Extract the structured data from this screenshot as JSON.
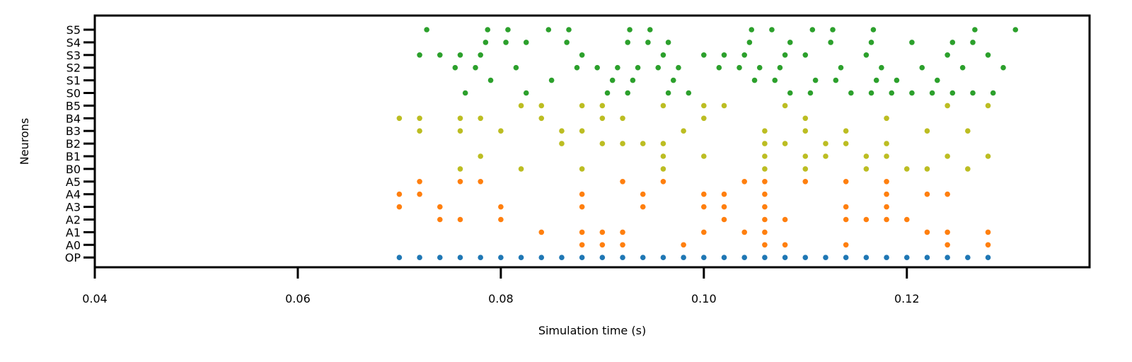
{
  "chart_data": {
    "type": "scatter",
    "title": "",
    "xlabel": "Simulation time (s)",
    "ylabel": "Neurons",
    "xlim": [
      0.04,
      0.138
    ],
    "xticks": [
      0.04,
      0.06,
      0.08,
      0.1,
      0.12
    ],
    "xtick_labels": [
      "0.04",
      "0.06",
      "0.08",
      "0.10",
      "0.12"
    ],
    "grid": false,
    "legend": "none",
    "neurons": [
      "OP",
      "A0",
      "A1",
      "A2",
      "A3",
      "A4",
      "A5",
      "B0",
      "B1",
      "B2",
      "B3",
      "B4",
      "B5",
      "S0",
      "S1",
      "S2",
      "S3",
      "S4",
      "S5"
    ],
    "colors": {
      "OP": "#1f77b4",
      "A": "#ff7f0e",
      "B": "#bcbd22",
      "S": "#2ca02c"
    },
    "spikes": {
      "OP": [
        0.07,
        0.072,
        0.074,
        0.076,
        0.078,
        0.08,
        0.082,
        0.084,
        0.086,
        0.088,
        0.09,
        0.092,
        0.094,
        0.096,
        0.098,
        0.1,
        0.102,
        0.104,
        0.106,
        0.108,
        0.11,
        0.112,
        0.114,
        0.116,
        0.118,
        0.12,
        0.122,
        0.124,
        0.126,
        0.128
      ],
      "A0": [
        0.088,
        0.09,
        0.092,
        0.098,
        0.106,
        0.108,
        0.114,
        0.124,
        0.128
      ],
      "A1": [
        0.084,
        0.088,
        0.09,
        0.092,
        0.1,
        0.104,
        0.106,
        0.122,
        0.124,
        0.128
      ],
      "A2": [
        0.074,
        0.076,
        0.08,
        0.102,
        0.106,
        0.108,
        0.114,
        0.116,
        0.118,
        0.12
      ],
      "A3": [
        0.07,
        0.074,
        0.08,
        0.088,
        0.094,
        0.1,
        0.102,
        0.106,
        0.114,
        0.118
      ],
      "A4": [
        0.07,
        0.072,
        0.088,
        0.094,
        0.1,
        0.102,
        0.106,
        0.118,
        0.122,
        0.124
      ],
      "A5": [
        0.072,
        0.076,
        0.078,
        0.092,
        0.096,
        0.104,
        0.106,
        0.11,
        0.114,
        0.118
      ],
      "B0": [
        0.076,
        0.082,
        0.088,
        0.096,
        0.106,
        0.11,
        0.116,
        0.12,
        0.122,
        0.126
      ],
      "B1": [
        0.078,
        0.096,
        0.1,
        0.106,
        0.11,
        0.112,
        0.116,
        0.118,
        0.124,
        0.128
      ],
      "B2": [
        0.086,
        0.09,
        0.092,
        0.094,
        0.096,
        0.106,
        0.108,
        0.112,
        0.114,
        0.118
      ],
      "B3": [
        0.072,
        0.076,
        0.08,
        0.086,
        0.088,
        0.098,
        0.106,
        0.11,
        0.114,
        0.122,
        0.126
      ],
      "B4": [
        0.07,
        0.072,
        0.076,
        0.078,
        0.084,
        0.09,
        0.092,
        0.1,
        0.11,
        0.118
      ],
      "B5": [
        0.082,
        0.084,
        0.088,
        0.09,
        0.096,
        0.1,
        0.102,
        0.108,
        0.124,
        0.128
      ],
      "S0": [
        0.0765,
        0.0825,
        0.0905,
        0.0925,
        0.0965,
        0.0985,
        0.1085,
        0.1105,
        0.1145,
        0.1165,
        0.1185,
        0.1205,
        0.1225,
        0.1245,
        0.1265,
        0.1285
      ],
      "S1": [
        0.079,
        0.085,
        0.091,
        0.093,
        0.097,
        0.105,
        0.107,
        0.111,
        0.113,
        0.117,
        0.119,
        0.123
      ],
      "S2": [
        0.0755,
        0.0775,
        0.0815,
        0.0875,
        0.0895,
        0.0915,
        0.0935,
        0.0955,
        0.0975,
        0.1015,
        0.1035,
        0.1055,
        0.1075,
        0.1135,
        0.1175,
        0.1215,
        0.1255,
        0.1295
      ],
      "S3": [
        0.072,
        0.074,
        0.076,
        0.078,
        0.088,
        0.096,
        0.1,
        0.102,
        0.104,
        0.108,
        0.11,
        0.116,
        0.124,
        0.128
      ],
      "S4": [
        0.0785,
        0.0805,
        0.0825,
        0.0865,
        0.0925,
        0.0945,
        0.0965,
        0.1045,
        0.1085,
        0.1125,
        0.1165,
        0.1205,
        0.1245,
        0.1265
      ],
      "S5": [
        0.0727,
        0.0787,
        0.0807,
        0.0847,
        0.0867,
        0.0927,
        0.0947,
        0.1047,
        0.1067,
        0.1107,
        0.1127,
        0.1167,
        0.1267,
        0.1307
      ]
    }
  }
}
